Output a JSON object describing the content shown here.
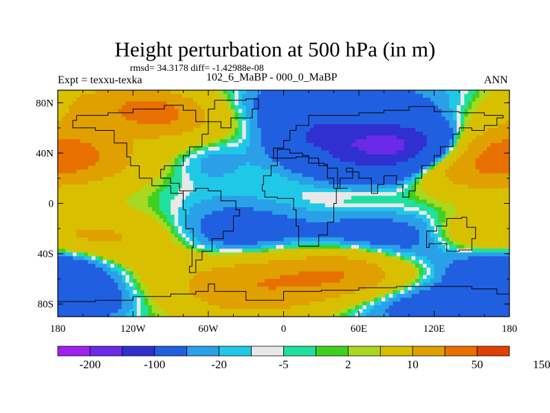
{
  "chart_data": {
    "type": "heatmap",
    "title": "Height perturbation at 500 hPa (in m)",
    "stats_text": "rmsd= 34.3178 diff= -1.42988e-08",
    "left_label": "Expt = texxu-texka",
    "center_label": "102_6_MaBP - 000_0_MaBP",
    "right_label": "ANN",
    "x_ticks": [
      "180",
      "120W",
      "60W",
      "0",
      "60E",
      "120E",
      "180"
    ],
    "y_ticks": [
      "80N",
      "40N",
      "0",
      "40S",
      "80S"
    ],
    "colorbar_labels": [
      "-200",
      "-100",
      "-20",
      "-5",
      "2",
      "10",
      "50",
      "150"
    ],
    "palette": [
      "#a020f0",
      "#6a2ae8",
      "#3030d0",
      "#2060e0",
      "#2aa0e8",
      "#20c8e8",
      "#e8e8e8",
      "#20e0a0",
      "#40d020",
      "#a8d820",
      "#d8c000",
      "#e0a000",
      "#e87000",
      "#e04000"
    ],
    "colorbar_levels": [
      -250,
      -200,
      -150,
      -100,
      -50,
      -20,
      -10,
      -5,
      -2,
      2,
      5,
      10,
      20,
      50,
      100,
      150,
      200
    ],
    "field_description": "Contour-filled 500 hPa geopotential height perturbation (m) on a lat-lon map; blobs listed as [lon, lat, amplitude_m, lon_half_width_deg, lat_half_width_deg]",
    "field": [
      [
        -150,
        80,
        45,
        30,
        12
      ],
      [
        -95,
        65,
        90,
        40,
        18
      ],
      [
        -105,
        72,
        60,
        20,
        10
      ],
      [
        -25,
        70,
        -20,
        25,
        12
      ],
      [
        40,
        85,
        -30,
        60,
        10
      ],
      [
        -165,
        40,
        75,
        35,
        16
      ],
      [
        165,
        35,
        80,
        40,
        18
      ],
      [
        125,
        25,
        35,
        25,
        10
      ],
      [
        70,
        45,
        -110,
        35,
        18
      ],
      [
        105,
        45,
        -90,
        30,
        15
      ],
      [
        25,
        55,
        -70,
        25,
        15
      ],
      [
        -120,
        55,
        -45,
        35,
        14
      ],
      [
        -60,
        40,
        -25,
        25,
        15
      ],
      [
        25,
        38,
        30,
        8,
        5
      ],
      [
        -160,
        8,
        -10,
        15,
        8
      ],
      [
        65,
        5,
        10,
        30,
        10
      ],
      [
        -135,
        -35,
        40,
        40,
        18
      ],
      [
        -155,
        -25,
        30,
        30,
        10
      ],
      [
        150,
        -25,
        35,
        25,
        12
      ],
      [
        -40,
        -25,
        -40,
        35,
        18
      ],
      [
        70,
        -30,
        -45,
        50,
        15
      ],
      [
        -175,
        -55,
        -70,
        35,
        15
      ],
      [
        -25,
        -65,
        95,
        45,
        18
      ],
      [
        50,
        -55,
        90,
        35,
        15
      ],
      [
        110,
        -80,
        -40,
        50,
        12
      ],
      [
        -160,
        -80,
        -30,
        30,
        10
      ]
    ]
  }
}
